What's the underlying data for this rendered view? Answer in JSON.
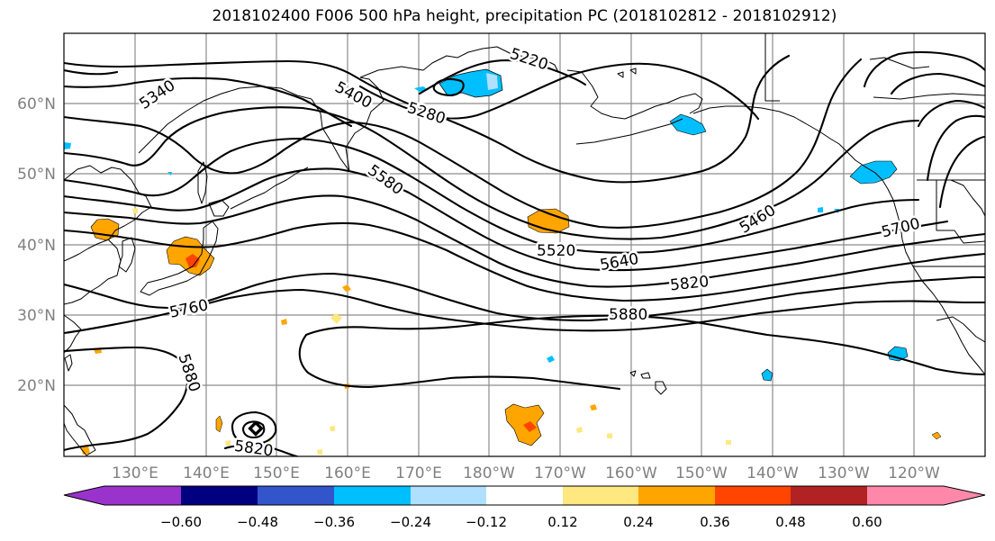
{
  "title": "2018102400 F006 500 hPa height, precipitation PC (2018102812 - 2018102912)",
  "map": {
    "lon_ticks": [
      "130°E",
      "140°E",
      "150°E",
      "160°E",
      "170°E",
      "180°W",
      "170°W",
      "160°W",
      "150°W",
      "140°W",
      "130°W",
      "120°W"
    ],
    "lat_ticks": [
      "60°N",
      "50°N",
      "40°N",
      "30°N",
      "20°N"
    ]
  },
  "contour_labels": [
    "5220",
    "5280",
    "5340",
    "5400",
    "5460",
    "5520",
    "5580",
    "5640",
    "5700",
    "5760",
    "5820",
    "5880",
    "5880",
    "5820"
  ],
  "colorbar": {
    "colors": [
      "#9933cc",
      "#000080",
      "#3355cc",
      "#00bfff",
      "#b0e0ff",
      "#ffffff",
      "#ffe880",
      "#ffa500",
      "#ff4500",
      "#b22222",
      "#ff88aa"
    ],
    "tick_labels": [
      "−0.60",
      "−0.48",
      "−0.36",
      "−0.24",
      "−0.12",
      "0.12",
      "0.24",
      "0.36",
      "0.48",
      "0.60"
    ]
  }
}
